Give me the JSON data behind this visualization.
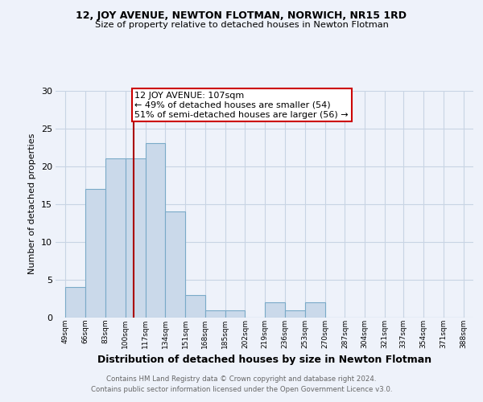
{
  "title1": "12, JOY AVENUE, NEWTON FLOTMAN, NORWICH, NR15 1RD",
  "title2": "Size of property relative to detached houses in Newton Flotman",
  "xlabel": "Distribution of detached houses by size in Newton Flotman",
  "ylabel": "Number of detached properties",
  "bin_labels": [
    "49sqm",
    "66sqm",
    "83sqm",
    "100sqm",
    "117sqm",
    "134sqm",
    "151sqm",
    "168sqm",
    "185sqm",
    "202sqm",
    "219sqm",
    "236sqm",
    "253sqm",
    "270sqm",
    "287sqm",
    "304sqm",
    "321sqm",
    "337sqm",
    "354sqm",
    "371sqm",
    "388sqm"
  ],
  "bar_values": [
    4,
    17,
    21,
    21,
    23,
    14,
    3,
    1,
    1,
    0,
    2,
    1,
    2,
    0,
    0,
    0,
    0,
    0,
    0,
    0
  ],
  "bar_color": "#cad9ea",
  "bar_edge_color": "#7aaac8",
  "vline_color": "#aa0000",
  "bin_edges": [
    49,
    66,
    83,
    100,
    117,
    134,
    151,
    168,
    185,
    202,
    219,
    236,
    253,
    270,
    287,
    304,
    321,
    337,
    354,
    371,
    388
  ],
  "annotation_line1": "12 JOY AVENUE: 107sqm",
  "annotation_line2": "← 49% of detached houses are smaller (54)",
  "annotation_line3": "51% of semi-detached houses are larger (56) →",
  "annotation_box_color": "#ffffff",
  "annotation_box_edge": "#cc0000",
  "ylim": [
    0,
    30
  ],
  "yticks": [
    0,
    5,
    10,
    15,
    20,
    25,
    30
  ],
  "grid_color": "#c8d4e4",
  "footer1": "Contains HM Land Registry data © Crown copyright and database right 2024.",
  "footer2": "Contains public sector information licensed under the Open Government Licence v3.0.",
  "bg_color": "#eef2fa"
}
